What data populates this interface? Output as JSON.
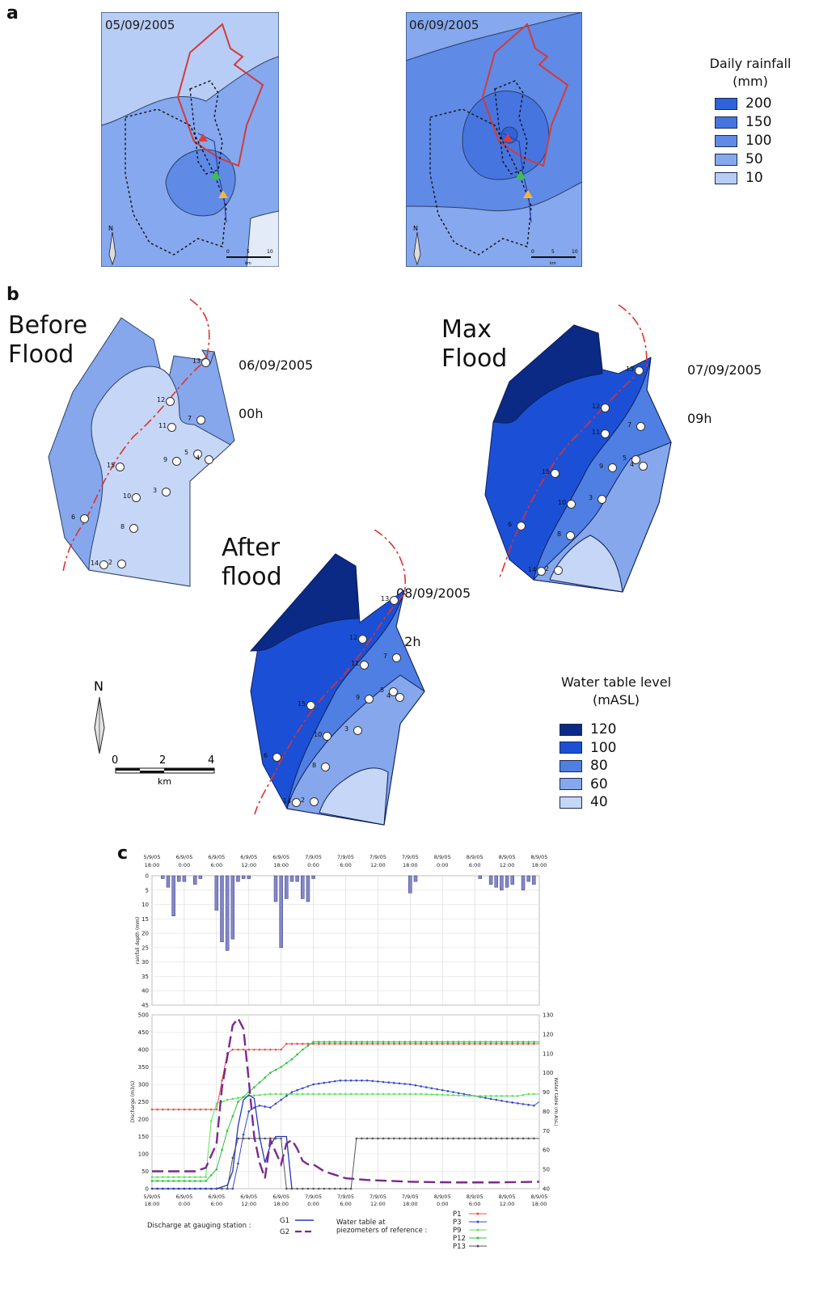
{
  "panel_a": {
    "label": "a",
    "maps": [
      {
        "date": "05/09/2005"
      },
      {
        "date": "06/09/2005"
      }
    ],
    "scalebar_ticks": [
      "0",
      "5",
      "10"
    ],
    "scalebar_unit": "km",
    "north": "N",
    "legend": {
      "title_line1": "Daily rainfall",
      "title_line2": "(mm)",
      "items": [
        {
          "label": "200",
          "color": "#2f63d9"
        },
        {
          "label": "150",
          "color": "#4675e0"
        },
        {
          "label": "100",
          "color": "#5f8ae6"
        },
        {
          "label": "50",
          "color": "#86a8ee"
        },
        {
          "label": "10",
          "color": "#b7cdf5"
        }
      ]
    }
  },
  "panel_b": {
    "label": "b",
    "maps": [
      {
        "title_line1": "Before",
        "title_line2": "Flood",
        "date_line1": "06/09/2005",
        "date_line2": "00h"
      },
      {
        "title_line1": "Max",
        "title_line2": "Flood",
        "date_line1": "07/09/2005",
        "date_line2": "09h"
      },
      {
        "title_line1": "After",
        "title_line2": "flood",
        "date_line1": "08/09/2005",
        "date_line2": "12h"
      }
    ],
    "piezometer_ids": [
      "13",
      "12",
      "11",
      "7",
      "5",
      "9",
      "4",
      "15",
      "3",
      "10",
      "6",
      "8",
      "14",
      "2"
    ],
    "north": "N",
    "scalebar_ticks": [
      "0",
      "2",
      "4"
    ],
    "scalebar_unit": "km",
    "legend": {
      "title_line1": "Water table level",
      "title_line2": "(mASL)",
      "items": [
        {
          "label": "120",
          "color": "#0a2a85"
        },
        {
          "label": "100",
          "color": "#1b50d6"
        },
        {
          "label": "80",
          "color": "#4f7fe2"
        },
        {
          "label": "60",
          "color": "#86a7ec"
        },
        {
          "label": "40",
          "color": "#c6d6f6"
        }
      ]
    }
  },
  "panel_c": {
    "label": "c",
    "top_axis_dates": [
      "5/9/05",
      "6/9/05",
      "6/9/05",
      "6/9/05",
      "6/9/05",
      "7/9/05",
      "7/9/05",
      "7/9/05",
      "7/9/05",
      "8/9/05",
      "8/9/05",
      "8/9/05",
      "8/9/05"
    ],
    "top_axis_times": [
      "18:00",
      "0:00",
      "6:00",
      "12:00",
      "18:00",
      "0:00",
      "6:00",
      "12:00",
      "18:00",
      "0:00",
      "6:00",
      "12:00",
      "18:00"
    ],
    "rain_ylabel": "rainfall depth (mm)",
    "rain_yticks": [
      "0",
      "5",
      "10",
      "15",
      "20",
      "25",
      "30",
      "35",
      "40",
      "45"
    ],
    "discharge_ylabel": "Discharge (m3/s)",
    "discharge_yticks": [
      "0",
      "50",
      "100",
      "150",
      "200",
      "250",
      "300",
      "350",
      "400",
      "450",
      "500"
    ],
    "wt_ylabel": "Water table (m ASL)",
    "wt_yticks": [
      "40",
      "50",
      "60",
      "70",
      "80",
      "90",
      "100",
      "110",
      "120",
      "130"
    ],
    "legend": {
      "discharge_label": "Discharge at gauging station :",
      "water_label_line1": "Water table at",
      "water_label_line2": "piezometers of reference :",
      "g_items": [
        "G1",
        "G2"
      ],
      "p_items": [
        "P1",
        "P3",
        "P9",
        "P12",
        "P13"
      ]
    }
  },
  "chart_data": {
    "type": "line",
    "x_unit": "hours from 5/9/05 18:00",
    "x_range": [
      0,
      72
    ],
    "rainfall": {
      "ylim": [
        0,
        45
      ],
      "x": [
        2,
        3,
        4,
        5,
        6,
        8,
        9,
        12,
        13,
        14,
        15,
        16,
        17,
        18,
        23,
        24,
        25,
        26,
        27,
        28,
        29,
        30,
        48,
        49,
        61,
        63,
        64,
        65,
        66,
        67,
        69,
        70,
        71
      ],
      "values": [
        1,
        4,
        14,
        2,
        2,
        3,
        1,
        12,
        23,
        26,
        22,
        2,
        1,
        1,
        9,
        25,
        8,
        2,
        2,
        8,
        9,
        1,
        6,
        2,
        1,
        3,
        4,
        5,
        4,
        3,
        5,
        2,
        3
      ]
    },
    "discharge": {
      "ylim": [
        0,
        500
      ],
      "series": [
        {
          "name": "G1",
          "x": [
            0,
            12,
            14,
            15,
            16,
            17,
            18,
            19,
            20,
            21,
            22,
            23,
            24,
            25,
            26
          ],
          "values": [
            0,
            0,
            10,
            50,
            180,
            255,
            270,
            260,
            150,
            75,
            125,
            150,
            150,
            150,
            0
          ]
        },
        {
          "name": "G2",
          "x": [
            0,
            8,
            10,
            12,
            13,
            14,
            15,
            16,
            17,
            18,
            19,
            20,
            21,
            22,
            24,
            25,
            26,
            27,
            28,
            29,
            30,
            32,
            34,
            36,
            40,
            48,
            56,
            64,
            72
          ],
          "values": [
            50,
            50,
            60,
            130,
            290,
            380,
            470,
            490,
            460,
            310,
            150,
            75,
            30,
            140,
            70,
            130,
            140,
            115,
            80,
            70,
            70,
            50,
            40,
            30,
            25,
            20,
            18,
            18,
            20
          ]
        }
      ]
    },
    "water_table": {
      "ylim": [
        40,
        130
      ],
      "series": [
        {
          "name": "P1",
          "x": [
            0,
            12,
            13,
            14,
            15,
            16,
            24,
            25,
            26,
            72
          ],
          "values": [
            81,
            81,
            96,
            110,
            112,
            112,
            112,
            115,
            115,
            115
          ]
        },
        {
          "name": "P3",
          "x": [
            0,
            15,
            16,
            17,
            18,
            19,
            20,
            22,
            24,
            26,
            28,
            30,
            35,
            40,
            48,
            56,
            66,
            71,
            72
          ],
          "values": [
            40,
            40,
            53,
            68,
            80,
            82,
            83,
            82,
            86,
            90,
            92,
            94,
            96,
            96,
            94,
            90,
            85,
            83,
            85
          ]
        },
        {
          "name": "P9",
          "x": [
            0,
            10,
            11,
            12,
            14,
            16,
            18,
            22,
            26,
            30,
            40,
            50,
            60,
            68,
            70,
            72
          ],
          "values": [
            46,
            46,
            75,
            84,
            86,
            87,
            88,
            89,
            89,
            89,
            89,
            89,
            88,
            88,
            89,
            89
          ]
        },
        {
          "name": "P12",
          "x": [
            0,
            10,
            12,
            14,
            16,
            18,
            20,
            22,
            24,
            26,
            28,
            30,
            40,
            50,
            60,
            72
          ],
          "values": [
            44,
            44,
            50,
            70,
            85,
            90,
            95,
            100,
            103,
            107,
            112,
            116,
            116,
            116,
            116,
            116
          ]
        },
        {
          "name": "P13",
          "x": [
            0,
            14,
            15,
            16,
            24,
            25,
            37,
            38,
            72
          ],
          "values": [
            40,
            40,
            56,
            66,
            66,
            40,
            40,
            66,
            66
          ]
        }
      ]
    }
  }
}
